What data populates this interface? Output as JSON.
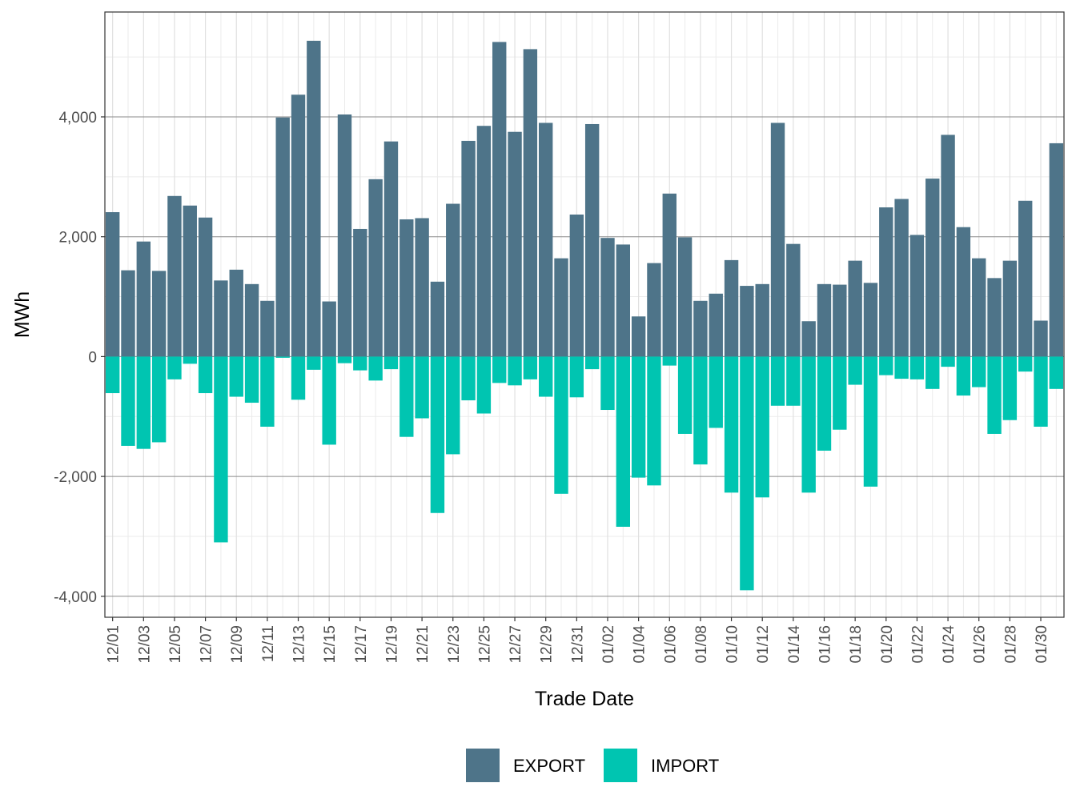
{
  "chart_data": {
    "type": "bar",
    "stacked": "diverging",
    "xlabel": "Trade Date",
    "ylabel": "MWh",
    "ylim": [
      -4350,
      5750
    ],
    "yticks": [
      -4000,
      -2000,
      0,
      2000,
      4000
    ],
    "ytick_labels": [
      "-4,000",
      "-2,000",
      "0",
      "2,000",
      "4,000"
    ],
    "grid": true,
    "legend_position": "bottom",
    "colors": {
      "EXPORT": "#4e7489",
      "IMPORT": "#00c5b1"
    },
    "categories": [
      "12/01",
      "12/02",
      "12/03",
      "12/04",
      "12/05",
      "12/06",
      "12/07",
      "12/08",
      "12/09",
      "12/10",
      "12/11",
      "12/12",
      "12/13",
      "12/14",
      "12/15",
      "12/16",
      "12/17",
      "12/18",
      "12/19",
      "12/20",
      "12/21",
      "12/22",
      "12/23",
      "12/24",
      "12/25",
      "12/26",
      "12/27",
      "12/28",
      "12/29",
      "12/30",
      "12/31",
      "01/01",
      "01/02",
      "01/03",
      "01/04",
      "01/05",
      "01/06",
      "01/07",
      "01/08",
      "01/09",
      "01/10",
      "01/11",
      "01/12",
      "01/13",
      "01/14",
      "01/15",
      "01/16",
      "01/17",
      "01/18",
      "01/19",
      "01/20",
      "01/21",
      "01/22",
      "01/23",
      "01/24",
      "01/25",
      "01/26",
      "01/27",
      "01/28",
      "01/29",
      "01/30",
      "01/31"
    ],
    "tick_labels": [
      "12/01",
      "12/03",
      "12/05",
      "12/07",
      "12/09",
      "12/11",
      "12/13",
      "12/15",
      "12/17",
      "12/19",
      "12/21",
      "12/23",
      "12/25",
      "12/27",
      "12/29",
      "12/31",
      "01/02",
      "01/04",
      "01/06",
      "01/08",
      "01/10",
      "01/12",
      "01/14",
      "01/16",
      "01/18",
      "01/20",
      "01/22",
      "01/24",
      "01/26",
      "01/28",
      "01/30"
    ],
    "series": [
      {
        "name": "EXPORT",
        "values": [
          2410,
          1440,
          1920,
          1430,
          2680,
          2520,
          2320,
          1270,
          1450,
          1210,
          930,
          3990,
          4370,
          5270,
          920,
          4040,
          2130,
          2960,
          3590,
          2290,
          2310,
          1250,
          2550,
          3600,
          3850,
          5250,
          3750,
          5130,
          3900,
          1640,
          2370,
          3880,
          1980,
          1870,
          670,
          1560,
          2720,
          1990,
          930,
          1050,
          1610,
          1180,
          1210,
          3900,
          1880,
          590,
          1210,
          1200,
          1600,
          1230,
          2490,
          2630,
          2030,
          2970,
          3700,
          2160,
          1640,
          1310,
          1600,
          2600,
          600,
          3560
        ]
      },
      {
        "name": "IMPORT",
        "values": [
          -610,
          -1490,
          -1540,
          -1430,
          -380,
          -120,
          -610,
          -3100,
          -670,
          -770,
          -1170,
          -20,
          -720,
          -220,
          -1470,
          -110,
          -230,
          -400,
          -210,
          -1340,
          -1030,
          -2610,
          -1630,
          -730,
          -950,
          -440,
          -480,
          -380,
          -670,
          -2290,
          -680,
          -210,
          -890,
          -2840,
          -2020,
          -2150,
          -150,
          -1290,
          -1800,
          -1190,
          -2270,
          -3900,
          -2350,
          -820,
          -820,
          -2270,
          -1570,
          -1220,
          -470,
          -2170,
          -310,
          -370,
          -380,
          -540,
          -170,
          -650,
          -510,
          -1290,
          -1060,
          -250,
          -1170,
          -540
        ]
      }
    ]
  }
}
